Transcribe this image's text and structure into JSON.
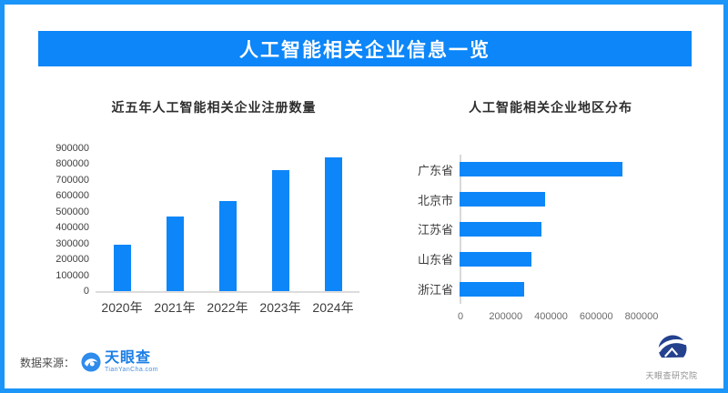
{
  "header": {
    "title": "人工智能相关企业信息一览",
    "banner_color": "#0c86f8"
  },
  "chart_data": [
    {
      "type": "bar",
      "orientation": "vertical",
      "title": "近五年人工智能相关企业注册数量",
      "categories": [
        "2020年",
        "2021年",
        "2022年",
        "2023年",
        "2024年"
      ],
      "values": [
        295000,
        470000,
        565000,
        760000,
        845000
      ],
      "xlabel": "",
      "ylabel": "",
      "ylim": [
        0,
        900000
      ],
      "ytick_step": 100000,
      "bar_color": "#0c86f8",
      "grid": false,
      "legend": false
    },
    {
      "type": "bar",
      "orientation": "horizontal",
      "title": "人工智能相关企业地区分布",
      "categories": [
        "广东省",
        "北京市",
        "江苏省",
        "山东省",
        "浙江省"
      ],
      "values": [
        720000,
        378000,
        362000,
        317000,
        285000
      ],
      "xlabel": "",
      "ylabel": "",
      "xlim": [
        0,
        800000
      ],
      "xtick_step": 200000,
      "bar_color": "#0c86f8",
      "grid": false,
      "legend": false
    }
  ],
  "footer": {
    "source_label": "数据来源：",
    "brand_name": "天眼查",
    "brand_domain": "TianYanCha.com",
    "institute_name": "天眼查研究院"
  },
  "colors": {
    "accent_blue": "#0c86f8",
    "frame_blue": "#1b95f7",
    "brand_blue": "#2f8cec",
    "institute_navy": "#24418e",
    "axis_gray": "#dcdcdc"
  }
}
